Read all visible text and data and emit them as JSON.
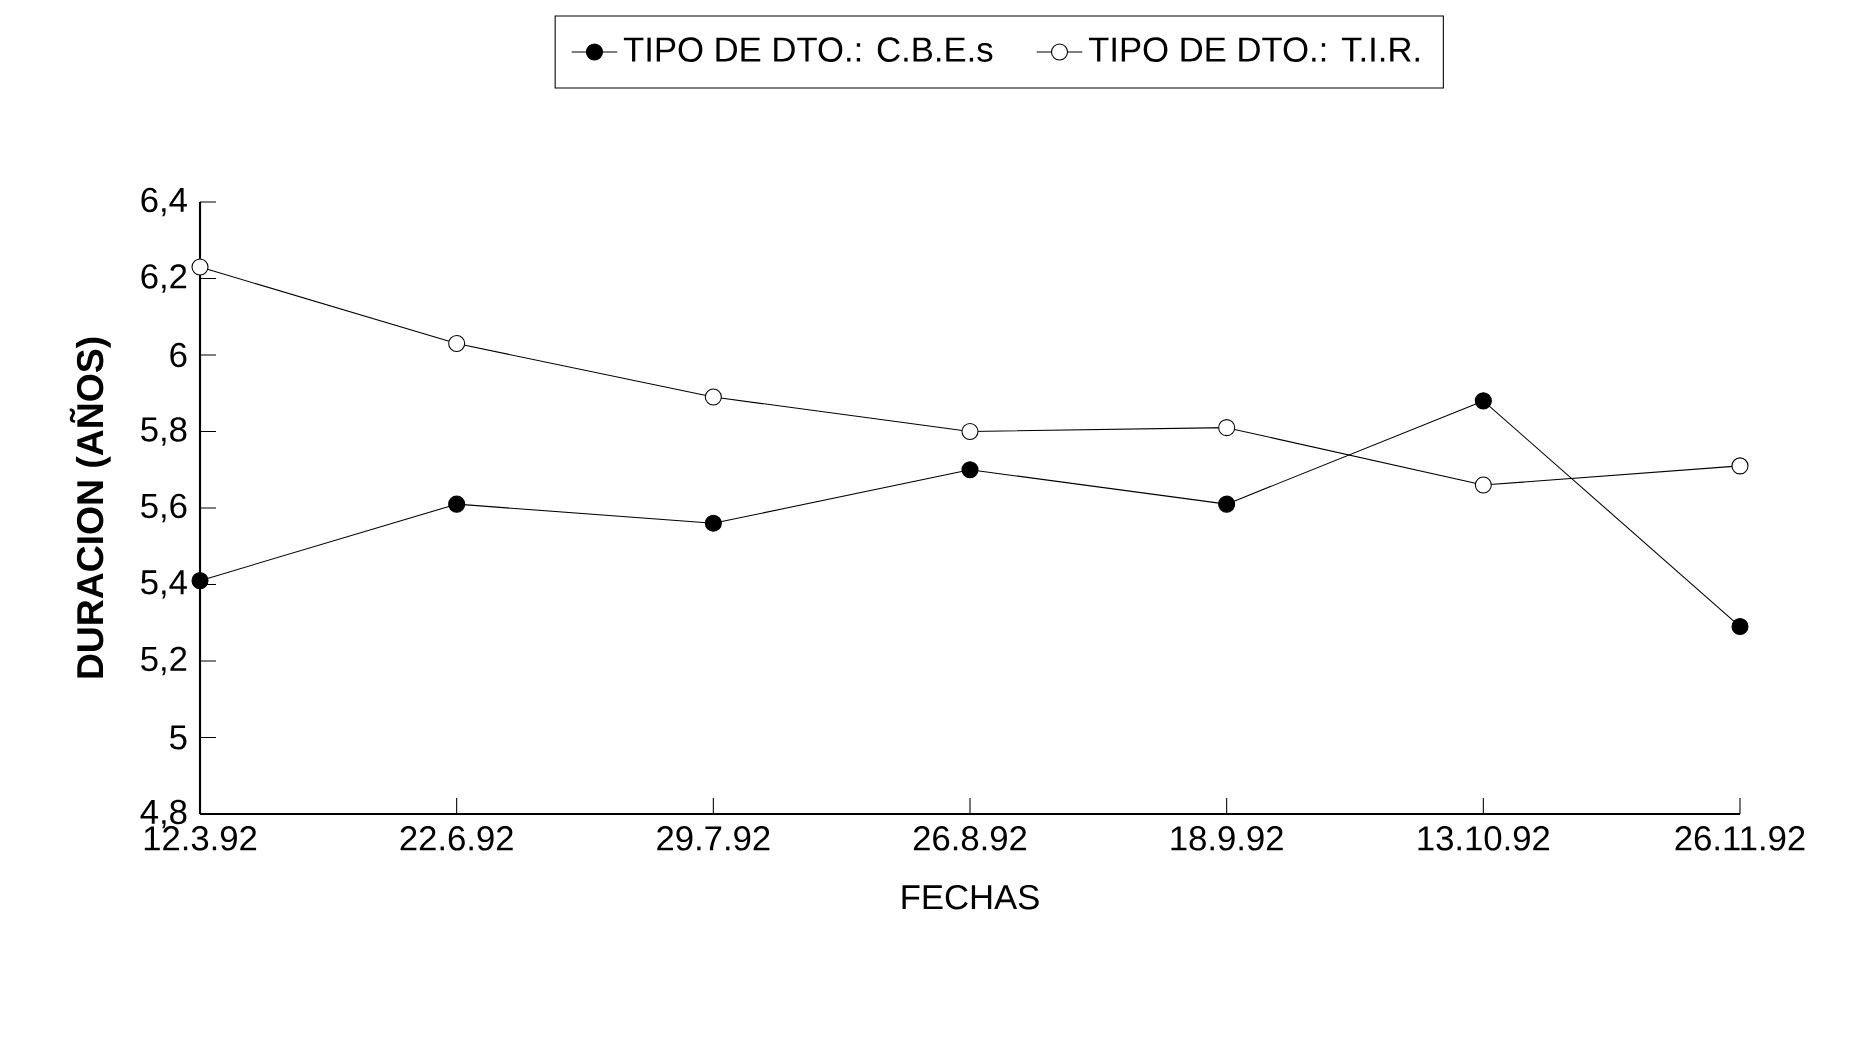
{
  "chart_data": {
    "type": "line",
    "xlabel": "FECHAS",
    "ylabel": "DURACION (AÑOS)",
    "categories": [
      "12.3.92",
      "22.6.92",
      "29.7.92",
      "26.8.92",
      "18.9.92",
      "13.10.92",
      "26.11.92"
    ],
    "series": [
      {
        "name": "TIPO DE DTO.: C.B.E.s",
        "color": "#000000",
        "values": [
          5.41,
          5.61,
          5.56,
          5.7,
          5.61,
          5.88,
          5.29
        ]
      },
      {
        "name": "TIPO DE DTO.: T.I.R.",
        "color": "#ffffff",
        "values": [
          6.23,
          6.03,
          5.89,
          5.8,
          5.81,
          5.66,
          5.71
        ]
      }
    ],
    "ylim": [
      4.8,
      6.4
    ],
    "yticks": [
      {
        "value": 4.8,
        "label": "4,8"
      },
      5,
      {
        "value": 5.2,
        "label": "5,2"
      },
      {
        "value": 5.4,
        "label": "5,4"
      },
      {
        "value": 5.6,
        "label": "5,6"
      },
      {
        "value": 5.8,
        "label": "5,8"
      },
      6,
      {
        "value": 6.2,
        "label": "6,2"
      },
      {
        "value": 6.4,
        "label": "6,4"
      }
    ],
    "grid": false,
    "legend": "top",
    "marker": "circle",
    "line_style": "solid"
  }
}
